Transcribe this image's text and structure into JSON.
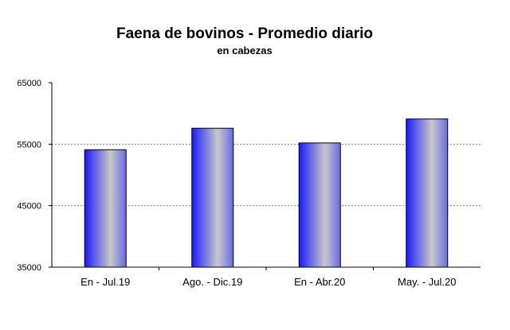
{
  "chart_data": {
    "type": "bar",
    "title": "Faena de bovinos - Promedio diario",
    "subtitle": "en cabezas",
    "categories": [
      "En - Jul.19",
      "Ago. - Dic.19",
      "En - Abr.20",
      "May. -  Jul.20"
    ],
    "values": [
      54100,
      57600,
      55200,
      59100
    ],
    "ylim": [
      35000,
      65000
    ],
    "yticks": [
      35000,
      45000,
      55000,
      65000
    ],
    "ytick_labels": [
      "35000",
      "45000",
      "55000",
      "65000"
    ],
    "grid": "horizontal dashed",
    "legend": "none",
    "colors": {
      "bar_edge": "#1a1aff",
      "bar_center": "#c8c8c8",
      "grid": "#808080",
      "axis": "#000000"
    }
  }
}
